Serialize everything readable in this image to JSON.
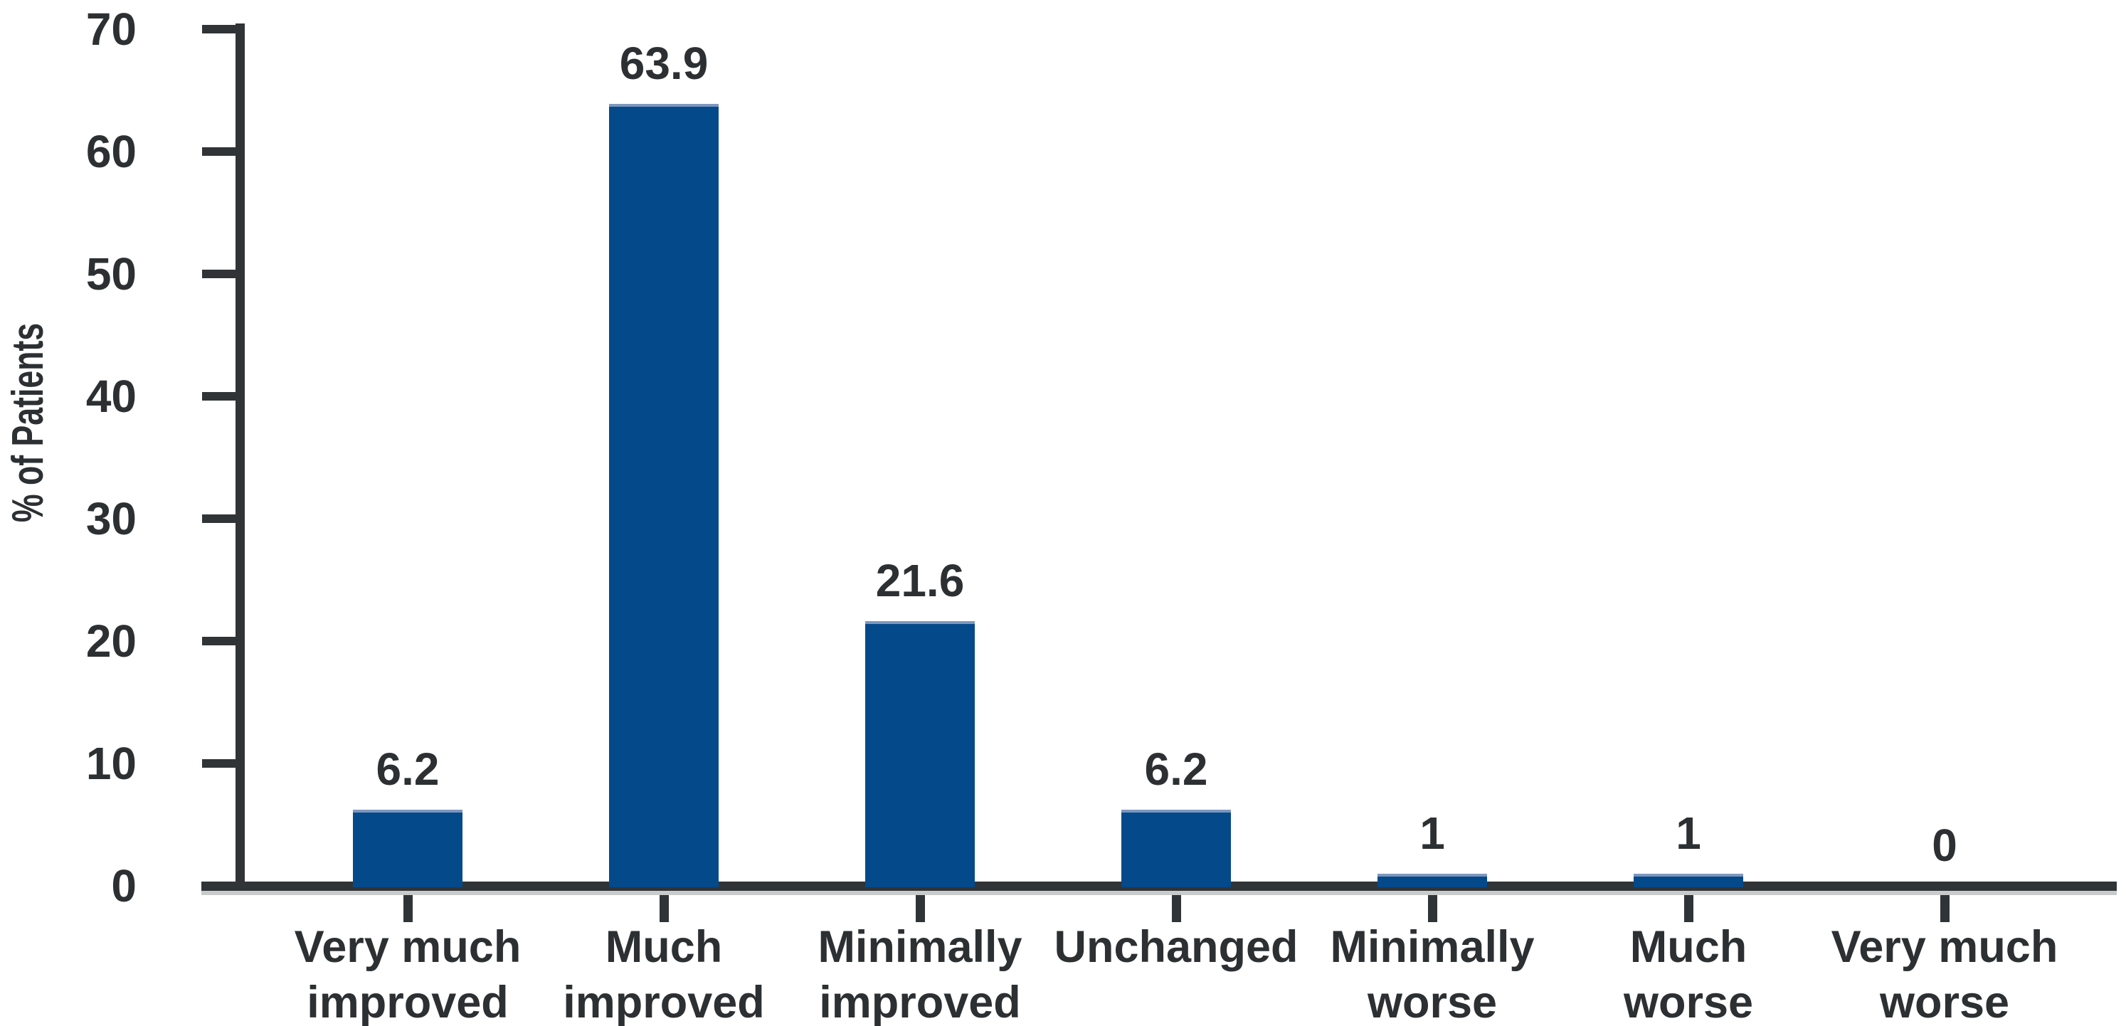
{
  "chart_data": {
    "type": "bar",
    "title": "",
    "ylabel": "% of Patients",
    "xlabel": "",
    "categories": [
      "Very much\nimproved",
      "Much\nimproved",
      "Minimally\nimproved",
      "Unchanged",
      "Minimally\nworse",
      "Much\nworse",
      "Very much\nworse"
    ],
    "values": [
      6.2,
      63.9,
      21.6,
      6.2,
      1,
      1,
      0
    ],
    "value_labels": [
      "6.2",
      "63.9",
      "21.6",
      "6.2",
      "1",
      "1",
      "0"
    ],
    "ylim": [
      0,
      70
    ],
    "yticks": [
      0,
      10,
      20,
      30,
      40,
      50,
      60,
      70
    ],
    "grid": false,
    "legend": null,
    "bar_color": "#04498a",
    "bar_top_edge_color": "#7e97be",
    "axis_color": "#303436",
    "text_color": "#2d3032",
    "axis_shadow_color": "#c9caca",
    "background_color": "#ffffff"
  }
}
